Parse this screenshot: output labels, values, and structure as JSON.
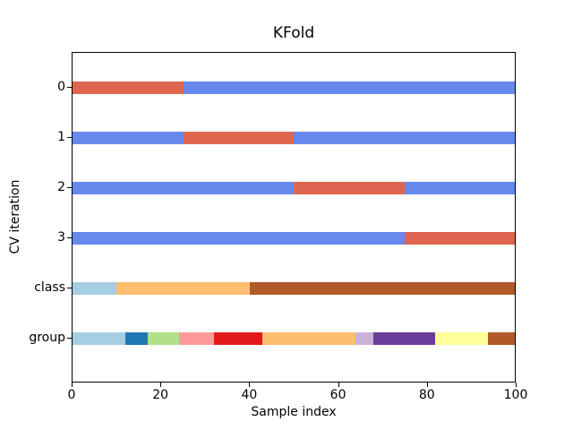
{
  "figure": {
    "background": "#ffffff",
    "spine_color": "#000000",
    "text_color": "#000000"
  },
  "chart_data": {
    "type": "bar",
    "subtype": "horizontal-segmented-cv-split-visualization",
    "title": "KFold",
    "xlabel": "Sample index",
    "ylabel": "CV iteration",
    "xlim": [
      0,
      100
    ],
    "ylim_top_to_bottom": [
      -0.2,
      6.4
    ],
    "x_ticks": [
      0,
      20,
      40,
      60,
      80,
      100
    ],
    "y_tick_labels": [
      "0",
      "1",
      "2",
      "3",
      "class",
      "group"
    ],
    "grid": false,
    "legend": "none",
    "colors": {
      "test": "#de664e",
      "train": "#6789ee",
      "class_palette": [
        "#a6cee3",
        "#fdbf6f",
        "#b15928"
      ],
      "group_palette": [
        "#a6cee3",
        "#1f78b4",
        "#b2df8a",
        "#fb9a99",
        "#e31a1c",
        "#fdbf6f",
        "#cab2d6",
        "#6a3d9a",
        "#ffff99",
        "#b15928"
      ]
    },
    "n_splits": 4,
    "n_samples": 100,
    "rows": [
      {
        "label": "0",
        "y": 0.5,
        "segments": [
          {
            "from": 0,
            "to": 25,
            "color": "#de664e",
            "role": "test"
          },
          {
            "from": 25,
            "to": 100,
            "color": "#6789ee",
            "role": "train"
          }
        ]
      },
      {
        "label": "1",
        "y": 1.5,
        "segments": [
          {
            "from": 0,
            "to": 25,
            "color": "#6789ee",
            "role": "train"
          },
          {
            "from": 25,
            "to": 50,
            "color": "#de664e",
            "role": "test"
          },
          {
            "from": 50,
            "to": 100,
            "color": "#6789ee",
            "role": "train"
          }
        ]
      },
      {
        "label": "2",
        "y": 2.5,
        "segments": [
          {
            "from": 0,
            "to": 50,
            "color": "#6789ee",
            "role": "train"
          },
          {
            "from": 50,
            "to": 75,
            "color": "#de664e",
            "role": "test"
          },
          {
            "from": 75,
            "to": 100,
            "color": "#6789ee",
            "role": "train"
          }
        ]
      },
      {
        "label": "3",
        "y": 3.5,
        "segments": [
          {
            "from": 0,
            "to": 75,
            "color": "#6789ee",
            "role": "train"
          },
          {
            "from": 75,
            "to": 100,
            "color": "#de664e",
            "role": "test"
          }
        ]
      },
      {
        "label": "class",
        "y": 4.5,
        "segments": [
          {
            "from": 0,
            "to": 10,
            "color": "#a6cee3",
            "role": "class-0"
          },
          {
            "from": 10,
            "to": 40,
            "color": "#fdbf6f",
            "role": "class-1"
          },
          {
            "from": 40,
            "to": 100,
            "color": "#b15928",
            "role": "class-2"
          }
        ]
      },
      {
        "label": "group",
        "y": 5.5,
        "segments": [
          {
            "from": 0,
            "to": 12,
            "color": "#a6cee3",
            "role": "group-0"
          },
          {
            "from": 12,
            "to": 17,
            "color": "#1f78b4",
            "role": "group-1"
          },
          {
            "from": 17,
            "to": 24,
            "color": "#b2df8a",
            "role": "group-2"
          },
          {
            "from": 24,
            "to": 32,
            "color": "#fb9a99",
            "role": "group-3"
          },
          {
            "from": 32,
            "to": 43,
            "color": "#e31a1c",
            "role": "group-4"
          },
          {
            "from": 43,
            "to": 64,
            "color": "#fdbf6f",
            "role": "group-5"
          },
          {
            "from": 64,
            "to": 68,
            "color": "#cab2d6",
            "role": "group-6"
          },
          {
            "from": 68,
            "to": 82,
            "color": "#6a3d9a",
            "role": "group-7"
          },
          {
            "from": 82,
            "to": 94,
            "color": "#ffff99",
            "role": "group-8"
          },
          {
            "from": 94,
            "to": 100,
            "color": "#b15928",
            "role": "group-9"
          }
        ]
      }
    ]
  }
}
